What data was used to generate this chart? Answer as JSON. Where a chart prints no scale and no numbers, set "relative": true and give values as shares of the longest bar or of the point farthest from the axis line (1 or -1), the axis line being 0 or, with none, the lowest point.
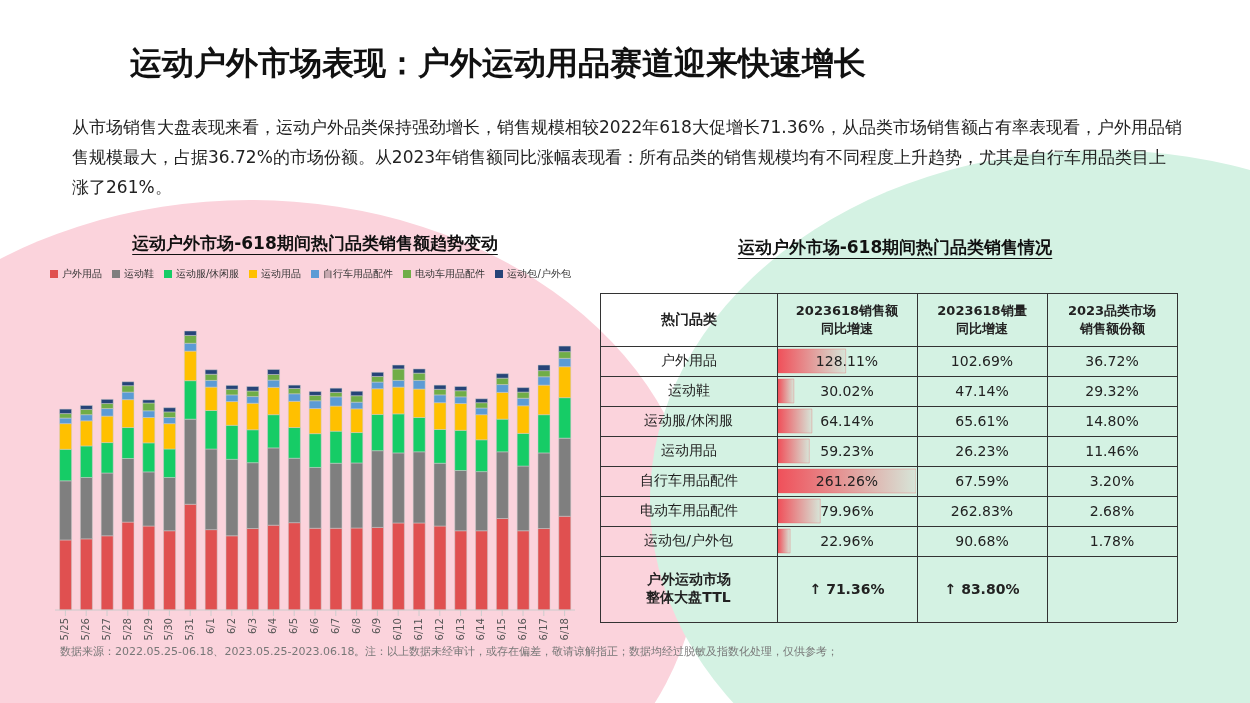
{
  "chart_data": [
    {
      "type": "other",
      "title": "运动户外市场表现：户外运动用品赛道迎来快速增长",
      "subtitle": "从市场销售大盘表现来看，运动户外品类保持强劲增长，销售规模相较2022年618大促增长71.36%，从品类市场销售额占有率表现看，户外用品销售规模最大，占据36.72%的市场份额。从2023年销售额同比涨幅表现看：所有品类的销售规模均有不同程度上升趋势，尤其是自行车用品类目上涨了261%。",
      "annotations": [
        "数据来源：2022.05.25-06.18、2023.05.25-2023.06.18。注：以上数据未经审计，或存在偏差，敬请谅解指正；数据均经过脱敏及指数化处理，仅供参考；"
      ]
    },
    {
      "type": "bar",
      "stacked": true,
      "relative": true,
      "legend": "top",
      "title": "运动户外市场-618期间热门品类销售额趋势变动",
      "categories": [
        "5/25",
        "5/26",
        "5/27",
        "5/28",
        "5/29",
        "5/30",
        "5/31",
        "6/1",
        "6/2",
        "6/3",
        "6/4",
        "6/5",
        "6/6",
        "6/7",
        "6/8",
        "6/9",
        "6/10",
        "6/11",
        "6/12",
        "6/13",
        "6/14",
        "6/15",
        "6/16",
        "6/17",
        "6/18"
      ],
      "series": [
        {
          "name": "户外用品",
          "color": "#e05050",
          "values": [
            0.251,
            0.255,
            0.266,
            0.315,
            0.301,
            0.284,
            0.379,
            0.288,
            0.266,
            0.292,
            0.304,
            0.313,
            0.293,
            0.293,
            0.294,
            0.296,
            0.312,
            0.312,
            0.301,
            0.284,
            0.284,
            0.328,
            0.284,
            0.292,
            0.336
          ]
        },
        {
          "name": "运动鞋",
          "color": "#7f7f7f",
          "values": [
            0.212,
            0.22,
            0.225,
            0.228,
            0.194,
            0.191,
            0.305,
            0.289,
            0.274,
            0.236,
            0.277,
            0.231,
            0.218,
            0.233,
            0.233,
            0.275,
            0.251,
            0.255,
            0.225,
            0.216,
            0.212,
            0.239,
            0.232,
            0.271,
            0.28
          ]
        },
        {
          "name": "运动服/休闲服",
          "color": "#16cc66",
          "values": [
            0.113,
            0.113,
            0.109,
            0.111,
            0.104,
            0.102,
            0.138,
            0.138,
            0.122,
            0.118,
            0.119,
            0.11,
            0.121,
            0.115,
            0.109,
            0.13,
            0.14,
            0.123,
            0.121,
            0.144,
            0.114,
            0.117,
            0.117,
            0.137,
            0.145
          ]
        },
        {
          "name": "运动用品",
          "color": "#ffc000",
          "values": [
            0.092,
            0.09,
            0.095,
            0.1,
            0.091,
            0.091,
            0.106,
            0.084,
            0.085,
            0.095,
            0.098,
            0.094,
            0.09,
            0.09,
            0.085,
            0.092,
            0.096,
            0.102,
            0.096,
            0.096,
            0.09,
            0.096,
            0.099,
            0.106,
            0.111
          ]
        },
        {
          "name": "自行车用品配件",
          "color": "#5b9bd5",
          "values": [
            0.02,
            0.022,
            0.027,
            0.027,
            0.024,
            0.022,
            0.028,
            0.024,
            0.024,
            0.024,
            0.026,
            0.027,
            0.028,
            0.033,
            0.024,
            0.024,
            0.024,
            0.031,
            0.028,
            0.024,
            0.024,
            0.028,
            0.027,
            0.03,
            0.03
          ]
        },
        {
          "name": "电动车用品配件",
          "color": "#70ad47",
          "values": [
            0.016,
            0.019,
            0.018,
            0.023,
            0.028,
            0.02,
            0.028,
            0.022,
            0.02,
            0.02,
            0.02,
            0.019,
            0.019,
            0.016,
            0.023,
            0.02,
            0.041,
            0.026,
            0.02,
            0.022,
            0.019,
            0.023,
            0.022,
            0.022,
            0.024
          ]
        },
        {
          "name": "运动包/户外包",
          "color": "#264478",
          "values": [
            0.016,
            0.014,
            0.015,
            0.014,
            0.011,
            0.015,
            0.016,
            0.016,
            0.014,
            0.016,
            0.018,
            0.012,
            0.014,
            0.015,
            0.016,
            0.015,
            0.014,
            0.015,
            0.015,
            0.015,
            0.014,
            0.016,
            0.016,
            0.02,
            0.02
          ]
        }
      ]
    },
    {
      "type": "other",
      "data_labels": true,
      "title": "运动户外市场-618期间热门品类销售情况",
      "ylabel": "热门品类",
      "categories": [
        "户外用品",
        "运动鞋",
        "运动服/休闲服",
        "运动用品",
        "自行车用品配件",
        "电动车用品配件",
        "运动包/户外包"
      ],
      "series": [
        {
          "name": "2023618销售额同比增速",
          "type": "bar",
          "color": "#f0505a",
          "values": [
            128.11,
            30.02,
            64.14,
            59.23,
            261.26,
            79.96,
            22.96
          ],
          "value_labels": [
            "128.11%",
            "30.02%",
            "64.14%",
            "59.23%",
            "261.26%",
            "79.96%",
            "22.96%"
          ]
        },
        {
          "name": "2023618销量同比增速",
          "values": [
            102.69,
            47.14,
            65.61,
            26.23,
            67.59,
            262.83,
            90.68
          ],
          "value_labels": [
            "102.69%",
            "47.14%",
            "65.61%",
            "26.23%",
            "67.59%",
            "262.83%",
            "90.68%"
          ]
        },
        {
          "name": "2023品类市场销售额份额",
          "values": [
            36.72,
            29.32,
            14.8,
            11.46,
            3.2,
            2.68,
            1.78
          ],
          "value_labels": [
            "36.72%",
            "29.32%",
            "14.80%",
            "11.46%",
            "3.20%",
            "2.68%",
            "1.78%"
          ]
        }
      ],
      "annotations": [
        "户外运动市场整体大盘TTL",
        "↑ 71.36%",
        "↑ 83.80%"
      ]
    }
  ]
}
